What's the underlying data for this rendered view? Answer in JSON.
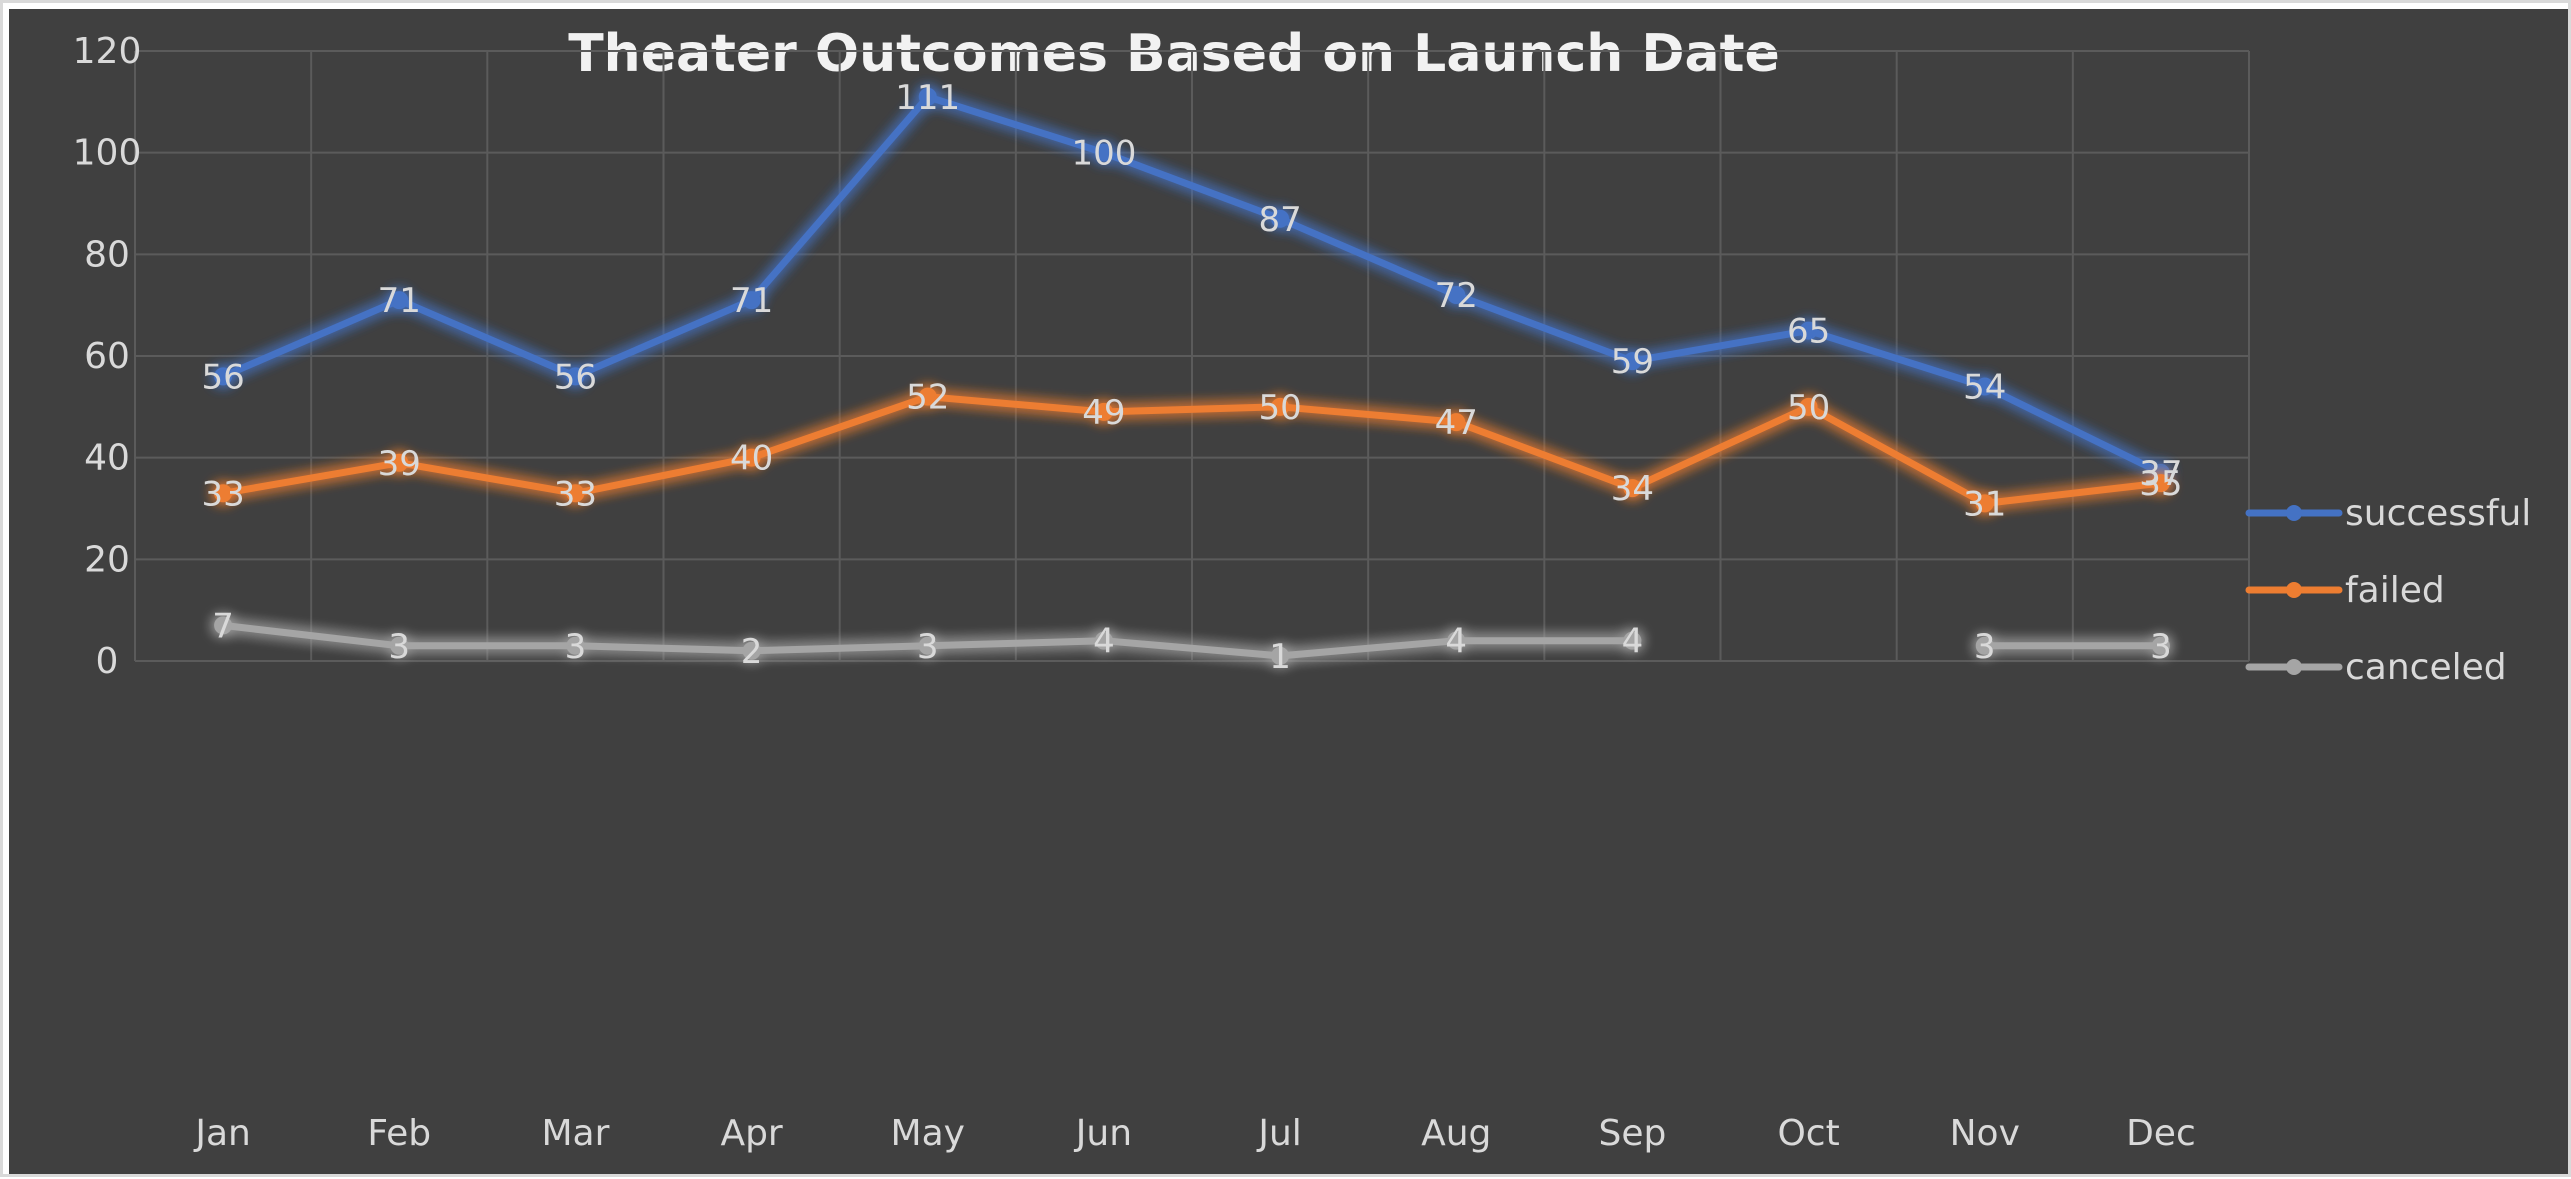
{
  "colors": {
    "background": "#404040",
    "grid": "#5b5b5b",
    "text": "#d9d9d9",
    "successful": "#4472c4",
    "failed": "#ed7d31",
    "canceled": "#a5a5a5"
  },
  "chart_data": {
    "type": "line",
    "title": "Theater Outcomes Based on Launch Date",
    "xlabel": "",
    "ylabel": "",
    "categories": [
      "Jan",
      "Feb",
      "Mar",
      "Apr",
      "May",
      "Jun",
      "Jul",
      "Aug",
      "Sep",
      "Oct",
      "Nov",
      "Dec"
    ],
    "ylim": [
      0,
      120
    ],
    "yticks": [
      "0",
      "20",
      "40",
      "60",
      "80",
      "100",
      "120"
    ],
    "grid": true,
    "legend_position": "right",
    "series": [
      {
        "name": "successful",
        "color": "#4472c4",
        "values": [
          56,
          71,
          56,
          71,
          111,
          100,
          87,
          72,
          59,
          65,
          54,
          37
        ],
        "labels": [
          "56",
          "71",
          "56",
          "71",
          "111",
          "100",
          "87",
          "72",
          "59",
          "65",
          "54",
          "37"
        ]
      },
      {
        "name": "failed",
        "color": "#ed7d31",
        "values": [
          33,
          39,
          33,
          40,
          52,
          49,
          50,
          47,
          34,
          50,
          31,
          35
        ],
        "labels": [
          "33",
          "39",
          "33",
          "40",
          "52",
          "49",
          "50",
          "47",
          "34",
          "50",
          "31",
          "35"
        ]
      },
      {
        "name": "canceled",
        "color": "#a5a5a5",
        "values": [
          7,
          3,
          3,
          2,
          3,
          4,
          1,
          4,
          4,
          null,
          3,
          3
        ],
        "labels": [
          "7",
          "3",
          "3",
          "2",
          "3",
          "4",
          "1",
          "4",
          "4",
          "",
          "3",
          "3"
        ]
      }
    ]
  }
}
